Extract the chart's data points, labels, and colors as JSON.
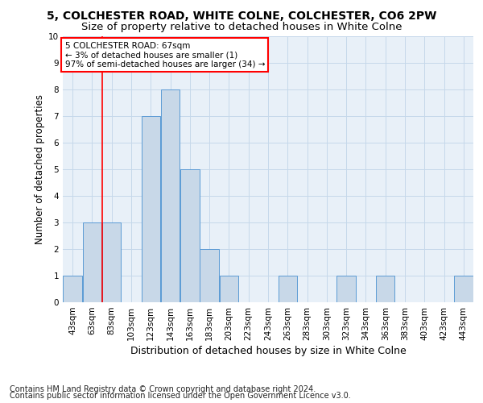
{
  "title1": "5, COLCHESTER ROAD, WHITE COLNE, COLCHESTER, CO6 2PW",
  "title2": "Size of property relative to detached houses in White Colne",
  "xlabel": "Distribution of detached houses by size in White Colne",
  "ylabel": "Number of detached properties",
  "footer1": "Contains HM Land Registry data © Crown copyright and database right 2024.",
  "footer2": "Contains public sector information licensed under the Open Government Licence v3.0.",
  "bin_labels": [
    "43sqm",
    "63sqm",
    "83sqm",
    "103sqm",
    "123sqm",
    "143sqm",
    "163sqm",
    "183sqm",
    "203sqm",
    "223sqm",
    "243sqm",
    "263sqm",
    "283sqm",
    "303sqm",
    "323sqm",
    "343sqm",
    "363sqm",
    "383sqm",
    "403sqm",
    "423sqm",
    "443sqm"
  ],
  "bar_values": [
    1,
    3,
    3,
    0,
    7,
    8,
    5,
    2,
    1,
    0,
    0,
    1,
    0,
    0,
    1,
    0,
    1,
    0,
    0,
    0,
    1
  ],
  "bar_color": "#c8d8e8",
  "bar_edge_color": "#5b9bd5",
  "annotation_text": "5 COLCHESTER ROAD: 67sqm\n← 3% of detached houses are smaller (1)\n97% of semi-detached houses are larger (34) →",
  "annotation_box_color": "white",
  "annotation_box_edge": "red",
  "vline_x": 1.5,
  "vline_color": "red",
  "ylim": [
    0,
    10
  ],
  "yticks": [
    0,
    1,
    2,
    3,
    4,
    5,
    6,
    7,
    8,
    9,
    10
  ],
  "grid_color": "#c5d8ea",
  "bg_color": "#e8f0f8",
  "title1_fontsize": 10,
  "title2_fontsize": 9.5,
  "xlabel_fontsize": 9,
  "ylabel_fontsize": 8.5,
  "tick_fontsize": 7.5,
  "footer_fontsize": 7,
  "ann_fontsize": 7.5
}
